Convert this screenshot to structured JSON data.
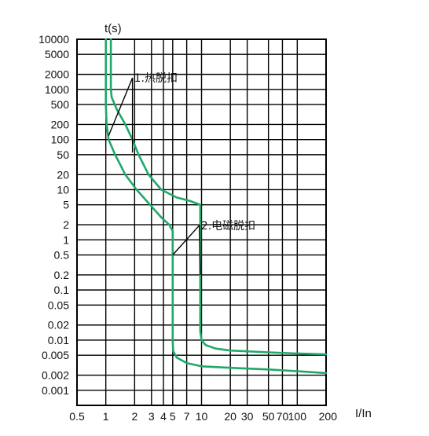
{
  "chart_data": {
    "type": "line",
    "title": "",
    "ylabel": "t(s)",
    "xlabel": "I/In",
    "x_scale": "log",
    "y_scale": "log",
    "grid": true,
    "xlim": [
      0.5,
      200
    ],
    "ylim": [
      0.0005,
      10000
    ],
    "x_ticks": [
      {
        "v": 0.5,
        "label": "0.5"
      },
      {
        "v": 1,
        "label": "1"
      },
      {
        "v": 2,
        "label": "2"
      },
      {
        "v": 3,
        "label": "3"
      },
      {
        "v": 4,
        "label": "4"
      },
      {
        "v": 5,
        "label": "5"
      },
      {
        "v": 7,
        "label": "7"
      },
      {
        "v": 10,
        "label": "10"
      },
      {
        "v": 20,
        "label": "20"
      },
      {
        "v": 30,
        "label": "30"
      },
      {
        "v": 50,
        "label": "50"
      },
      {
        "v": 70,
        "label": "70"
      },
      {
        "v": 100,
        "label": "100"
      },
      {
        "v": 200,
        "label": "200"
      }
    ],
    "y_ticks": [
      {
        "v": 10000,
        "label": "10000"
      },
      {
        "v": 5000,
        "label": "5000"
      },
      {
        "v": 2000,
        "label": "2000"
      },
      {
        "v": 1000,
        "label": "1000"
      },
      {
        "v": 500,
        "label": "500"
      },
      {
        "v": 200,
        "label": "200"
      },
      {
        "v": 100,
        "label": "100"
      },
      {
        "v": 50,
        "label": "50"
      },
      {
        "v": 20,
        "label": "20"
      },
      {
        "v": 10,
        "label": "10"
      },
      {
        "v": 5,
        "label": "5"
      },
      {
        "v": 2,
        "label": "2"
      },
      {
        "v": 1,
        "label": "1"
      },
      {
        "v": 0.5,
        "label": "0.5"
      },
      {
        "v": 0.2,
        "label": "0.2"
      },
      {
        "v": 0.1,
        "label": "0.1"
      },
      {
        "v": 0.05,
        "label": "0.05"
      },
      {
        "v": 0.02,
        "label": "0.02"
      },
      {
        "v": 0.01,
        "label": "0.01"
      },
      {
        "v": 0.005,
        "label": "0.005"
      },
      {
        "v": 0.002,
        "label": "0.002"
      },
      {
        "v": 0.001,
        "label": "0.001"
      }
    ],
    "line_color": "#1fa86a",
    "grid_color": "#000000",
    "series": [
      {
        "points": [
          [
            1.0,
            10000
          ],
          [
            1.0,
            2000
          ],
          [
            1.0,
            500
          ],
          [
            1.02,
            200
          ],
          [
            1.07,
            100
          ],
          [
            1.25,
            50
          ],
          [
            1.6,
            20
          ],
          [
            2.1,
            10
          ],
          [
            2.9,
            5
          ],
          [
            3.8,
            2.8
          ],
          [
            4.6,
            2
          ],
          [
            5.0,
            1.5
          ],
          [
            5.0,
            0.5
          ],
          [
            5.0,
            0.05
          ],
          [
            5.0,
            0.01
          ],
          [
            5.05,
            0.006
          ],
          [
            5.5,
            0.0045
          ],
          [
            7,
            0.0035
          ],
          [
            10,
            0.003
          ],
          [
            20,
            0.0028
          ],
          [
            50,
            0.0026
          ],
          [
            100,
            0.0024
          ],
          [
            200,
            0.0022
          ]
        ]
      },
      {
        "points": [
          [
            1.13,
            10000
          ],
          [
            1.13,
            2000
          ],
          [
            1.13,
            1000
          ],
          [
            1.15,
            700
          ],
          [
            1.3,
            400
          ],
          [
            1.6,
            200
          ],
          [
            1.9,
            100
          ],
          [
            2.2,
            50
          ],
          [
            2.8,
            20
          ],
          [
            3.8,
            10
          ],
          [
            5.5,
            7
          ],
          [
            7.5,
            6
          ],
          [
            9.7,
            5
          ],
          [
            9.7,
            1
          ],
          [
            9.7,
            0.2
          ],
          [
            9.7,
            0.05
          ],
          [
            9.7,
            0.015
          ],
          [
            10,
            0.01
          ],
          [
            11,
            0.008
          ],
          [
            14,
            0.0068
          ],
          [
            20,
            0.0062
          ],
          [
            50,
            0.0057
          ],
          [
            100,
            0.0054
          ],
          [
            200,
            0.0052
          ]
        ]
      }
    ],
    "annotations": [
      {
        "text": "1.热脱扣",
        "anchor": [
          1.9,
          1700
        ],
        "targets": [
          [
            1.07,
            120
          ],
          [
            1.9,
            55
          ]
        ]
      },
      {
        "text": "2.电磁脱扣",
        "anchor": [
          9.5,
          1.95
        ],
        "targets": [
          [
            5.0,
            0.5
          ],
          [
            9.7,
            0.2
          ]
        ]
      }
    ]
  }
}
